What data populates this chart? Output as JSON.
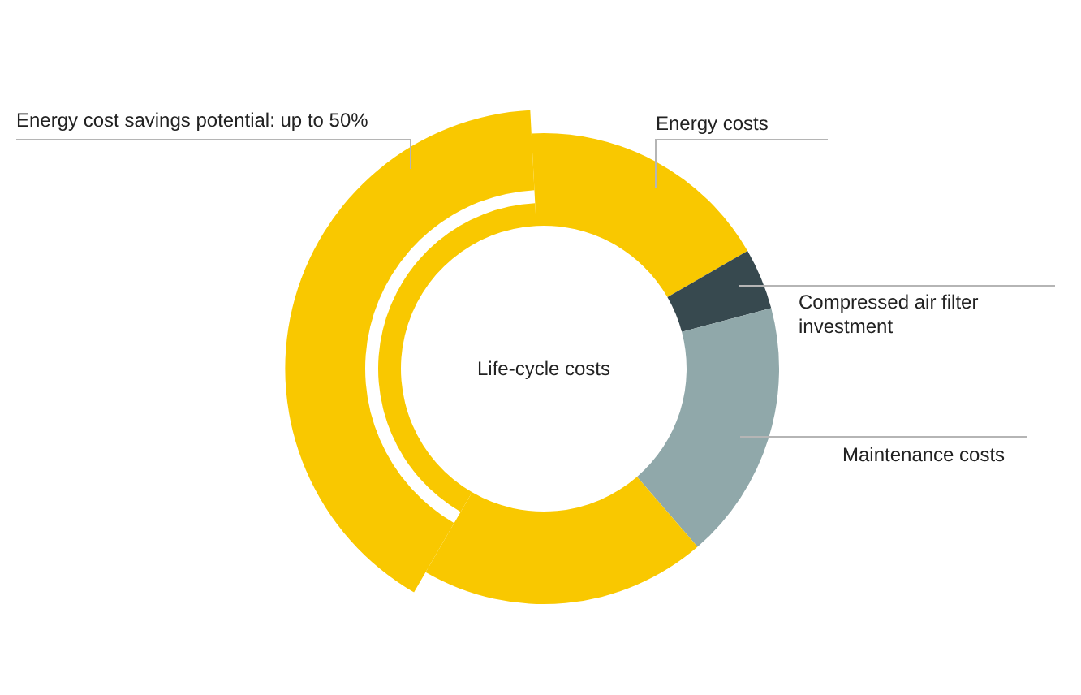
{
  "chart_data": {
    "type": "donut",
    "title": "Life-cycle costs",
    "categories": [
      "Energy costs",
      "Compressed air filter investment",
      "Maintenance costs",
      null,
      "Energy cost savings potential: up to 50%"
    ],
    "values": [
      17.5,
      4.2,
      17.8,
      19.7,
      40.8
    ],
    "colors": [
      "#f9c800",
      "#37494f",
      "#90a8aa",
      "#f9c800",
      "#f9c800"
    ]
  }
}
